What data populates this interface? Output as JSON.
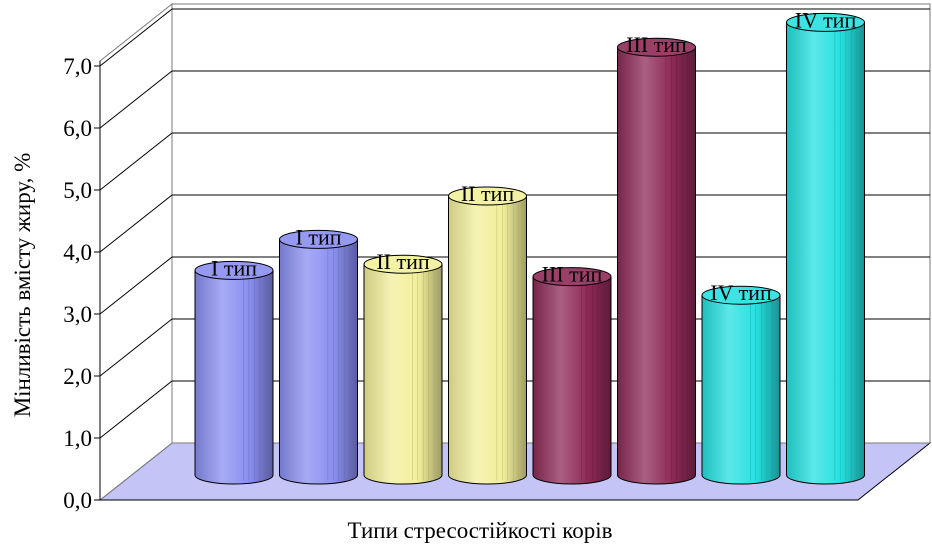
{
  "chart_data": {
    "type": "bar",
    "style": "3d-cylinder",
    "xlabel": "Типи стресостійкості корів",
    "ylabel": "Мінливість вмісту жиру, %",
    "ylim": [
      0,
      7
    ],
    "yticks": [
      "0,0",
      "1,0",
      "2,0",
      "3,0",
      "4,0",
      "5,0",
      "6,0",
      "7,0"
    ],
    "grid": true,
    "bars": [
      {
        "label": "I тип",
        "value": 3.3,
        "color": "#8a8ef0"
      },
      {
        "label": "I тип",
        "value": 3.8,
        "color": "#8a8ef0"
      },
      {
        "label": "II тип",
        "value": 3.4,
        "color": "#f2ef9a"
      },
      {
        "label": "II тип",
        "value": 4.5,
        "color": "#f2ef9a"
      },
      {
        "label": "III тип",
        "value": 3.2,
        "color": "#8e2a57"
      },
      {
        "label": "III тип",
        "value": 6.9,
        "color": "#8e2a57"
      },
      {
        "label": "IV тип",
        "value": 2.9,
        "color": "#25e0e0"
      },
      {
        "label": "IV тип",
        "value": 7.3,
        "color": "#25e0e0"
      }
    ]
  }
}
